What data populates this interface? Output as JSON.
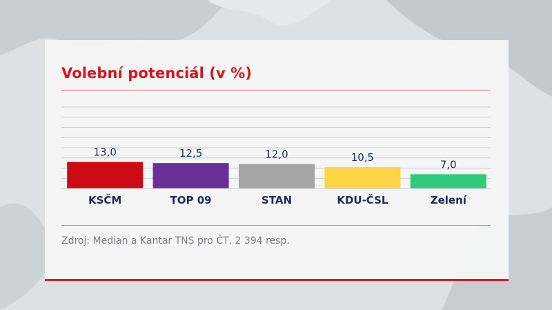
{
  "title": "Volební potenciál (v %)",
  "source": "Zdroj: Median a Kantar TNS pro ČT, 2 394 resp.",
  "colors": {
    "accent": "#d7141a",
    "value_label": "#1d2a5b",
    "category_label": "#1d2a5b"
  },
  "chart_data": {
    "type": "bar",
    "title": "Volební potenciál (v %)",
    "categories": [
      "KSČM",
      "TOP 09",
      "STAN",
      "KDU-ČSL",
      "Zelení"
    ],
    "values": [
      13.0,
      12.5,
      12.0,
      10.5,
      7.0
    ],
    "value_labels": [
      "13,0",
      "12,5",
      "12,0",
      "10,5",
      "7,0"
    ],
    "colors": [
      "#cc0a16",
      "#6b2e98",
      "#a5a5a5",
      "#fdd443",
      "#2ecb7b"
    ],
    "xlabel": "",
    "ylabel": "",
    "ylim": [
      0,
      40
    ],
    "grid": true,
    "legend": "none"
  }
}
